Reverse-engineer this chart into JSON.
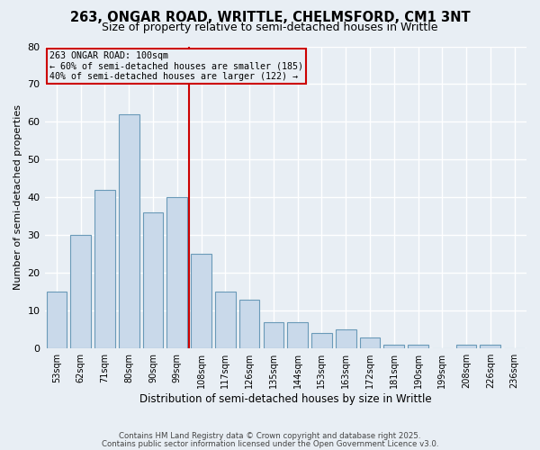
{
  "title1": "263, ONGAR ROAD, WRITTLE, CHELMSFORD, CM1 3NT",
  "title2": "Size of property relative to semi-detached houses in Writtle",
  "xlabel": "Distribution of semi-detached houses by size in Writtle",
  "ylabel": "Number of semi-detached properties",
  "categories": [
    "53sqm",
    "62sqm",
    "71sqm",
    "80sqm",
    "90sqm",
    "99sqm",
    "108sqm",
    "117sqm",
    "126sqm",
    "135sqm",
    "144sqm",
    "153sqm",
    "163sqm",
    "172sqm",
    "181sqm",
    "190sqm",
    "199sqm",
    "208sqm",
    "226sqm",
    "236sqm"
  ],
  "values": [
    15,
    30,
    42,
    62,
    36,
    40,
    25,
    15,
    13,
    7,
    7,
    4,
    5,
    3,
    1,
    1,
    0,
    1,
    1,
    0
  ],
  "bar_color": "#c9d9ea",
  "bar_edge_color": "#6a9ab8",
  "highlight_index": 5,
  "highlight_line_color": "#cc0000",
  "annotation_line1": "263 ONGAR ROAD: 100sqm",
  "annotation_line2": "← 60% of semi-detached houses are smaller (185)",
  "annotation_line3": "40% of semi-detached houses are larger (122) →",
  "annotation_box_color": "#cc0000",
  "footer1": "Contains HM Land Registry data © Crown copyright and database right 2025.",
  "footer2": "Contains public sector information licensed under the Open Government Licence v3.0.",
  "ylim": [
    0,
    80
  ],
  "yticks": [
    0,
    10,
    20,
    30,
    40,
    50,
    60,
    70,
    80
  ],
  "bg_color": "#e8eef4",
  "grid_color": "#ffffff",
  "title_fontsize": 10.5,
  "subtitle_fontsize": 9
}
